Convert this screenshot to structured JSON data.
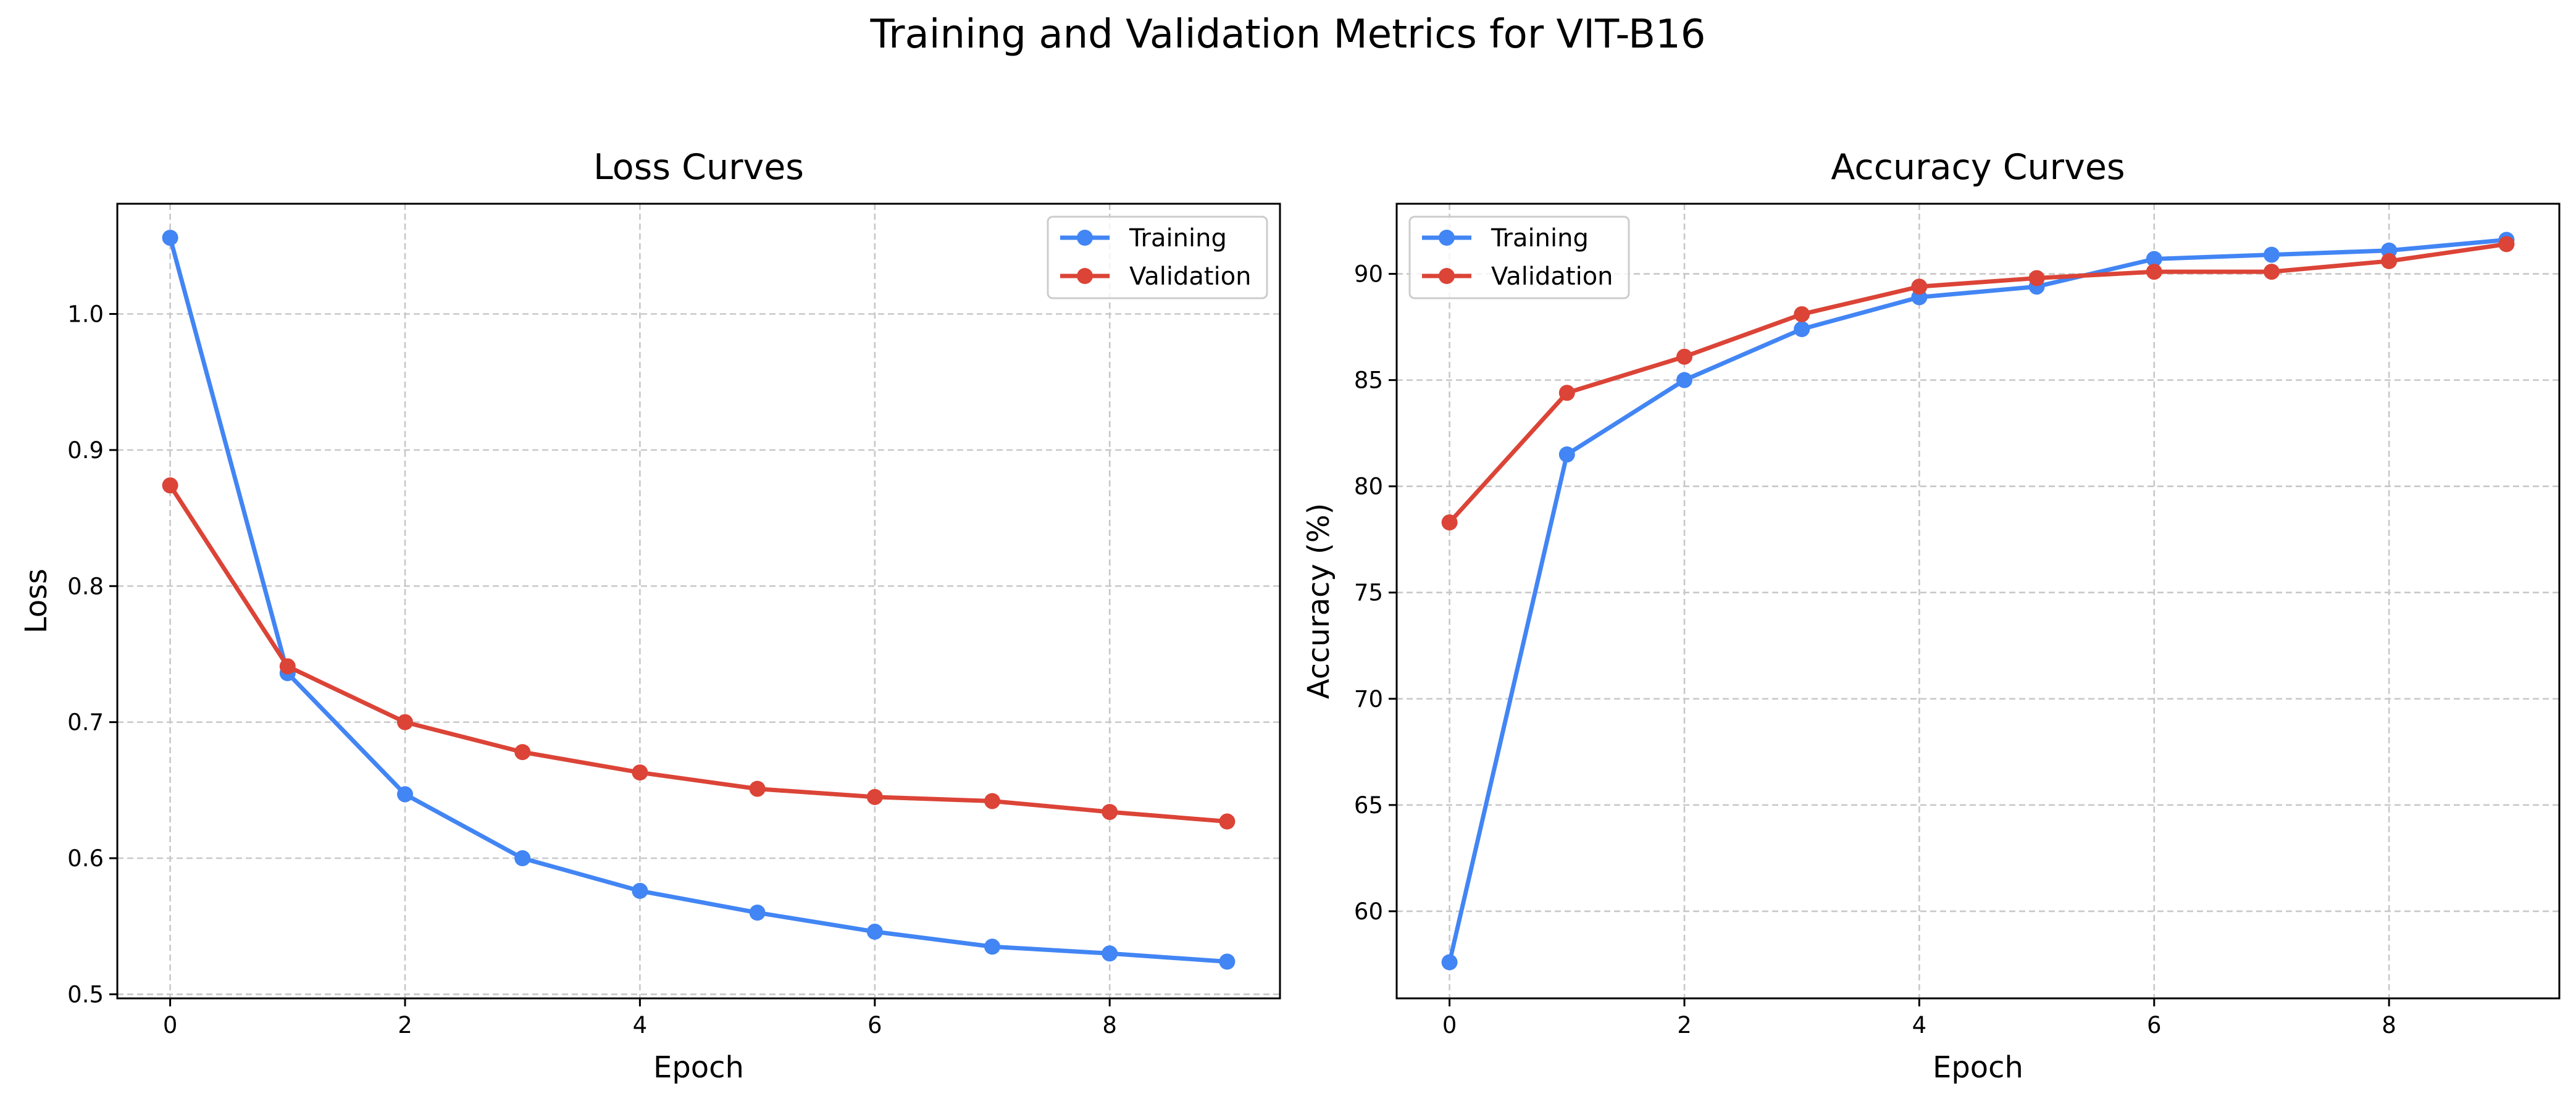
{
  "figure": {
    "title": "Training and Validation Metrics for VIT-B16"
  },
  "chart_data": [
    {
      "type": "line",
      "title": "Loss Curves",
      "xlabel": "Epoch",
      "ylabel": "Loss",
      "x": [
        0,
        1,
        2,
        3,
        4,
        5,
        6,
        7,
        8,
        9
      ],
      "xlim": [
        -0.45,
        9.45
      ],
      "ylim": [
        0.497,
        1.081
      ],
      "xticks": [
        0,
        2,
        4,
        6,
        8
      ],
      "yticks": [
        0.5,
        0.6,
        0.7,
        0.8,
        0.9,
        1.0
      ],
      "ytick_decimals": 1,
      "grid": true,
      "legend_position": "upper right",
      "series": [
        {
          "name": "Training",
          "color": "#4285F4",
          "values": [
            1.056,
            0.736,
            0.647,
            0.6,
            0.576,
            0.56,
            0.546,
            0.535,
            0.53,
            0.524
          ]
        },
        {
          "name": "Validation",
          "color": "#DB4437",
          "values": [
            0.874,
            0.741,
            0.7,
            0.678,
            0.663,
            0.651,
            0.645,
            0.642,
            0.634,
            0.627
          ]
        }
      ]
    },
    {
      "type": "line",
      "title": "Accuracy Curves",
      "xlabel": "Epoch",
      "ylabel": "Accuracy (%)",
      "x": [
        0,
        1,
        2,
        3,
        4,
        5,
        6,
        7,
        8,
        9
      ],
      "xlim": [
        -0.45,
        9.45
      ],
      "ylim": [
        55.9,
        93.3
      ],
      "xticks": [
        0,
        2,
        4,
        6,
        8
      ],
      "yticks": [
        60,
        65,
        70,
        75,
        80,
        85,
        90
      ],
      "ytick_decimals": 0,
      "grid": true,
      "legend_position": "upper left",
      "series": [
        {
          "name": "Training",
          "color": "#4285F4",
          "values": [
            57.6,
            81.5,
            85.0,
            87.4,
            88.9,
            89.4,
            90.7,
            90.9,
            91.1,
            91.6
          ]
        },
        {
          "name": "Validation",
          "color": "#DB4437",
          "values": [
            78.3,
            84.4,
            86.1,
            88.1,
            89.4,
            89.8,
            90.1,
            90.1,
            90.6,
            91.4
          ]
        }
      ]
    }
  ]
}
